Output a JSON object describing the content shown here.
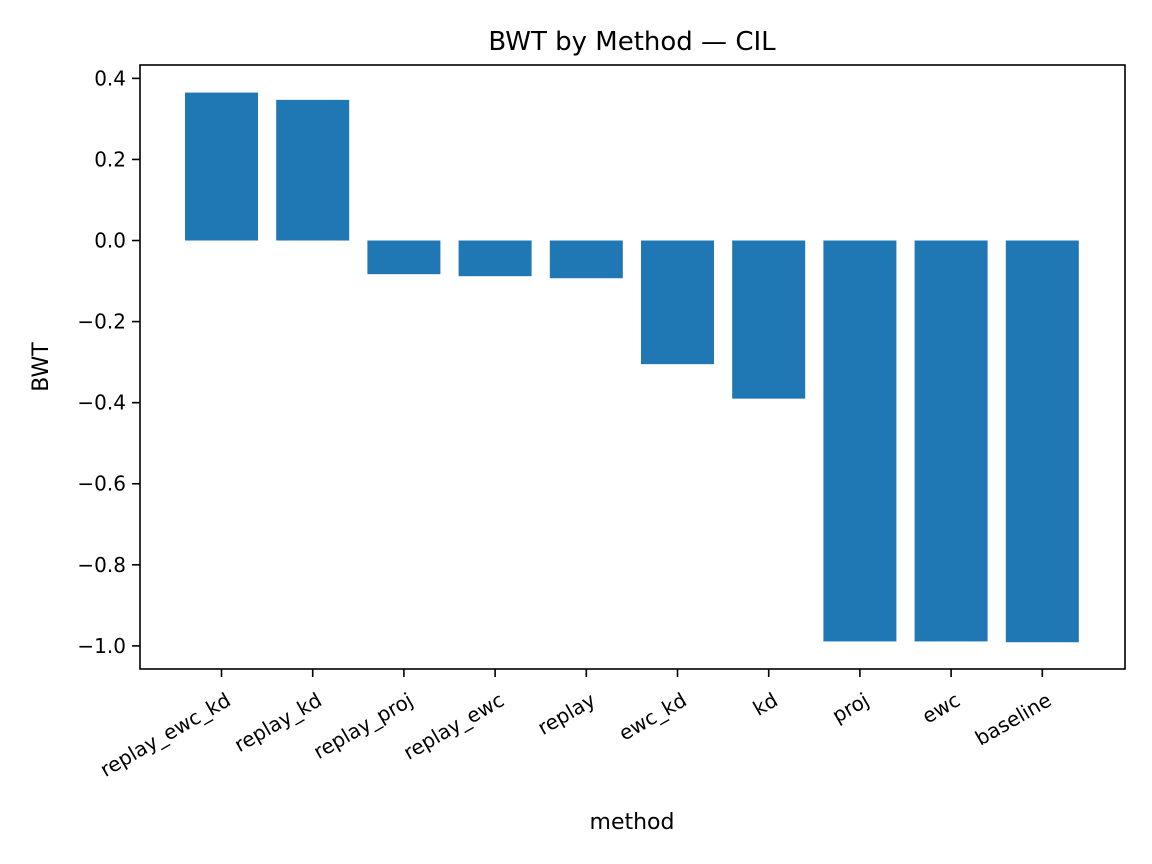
{
  "chart_data": {
    "type": "bar",
    "title": "BWT by Method — CIL",
    "xlabel": "method",
    "ylabel": "BWT",
    "categories": [
      "replay_ewc_kd",
      "replay_kd",
      "replay_proj",
      "replay_ewc",
      "replay",
      "ewc_kd",
      "kd",
      "proj",
      "ewc",
      "baseline"
    ],
    "values": [
      0.365,
      0.347,
      -0.083,
      -0.088,
      -0.093,
      -0.305,
      -0.39,
      -0.989,
      -0.989,
      -0.991
    ],
    "ylim": [
      -1.057,
      0.433
    ],
    "yticks": [
      0.4,
      0.2,
      0.0,
      -0.2,
      -0.4,
      -0.6,
      -0.8,
      -1.0
    ],
    "ytick_labels": [
      "0.4",
      "0.2",
      "0.0",
      "−0.2",
      "−0.4",
      "−0.6",
      "−0.8",
      "−1.0"
    ],
    "grid": false,
    "legend": "none",
    "bar_color": "#1f77b4"
  }
}
